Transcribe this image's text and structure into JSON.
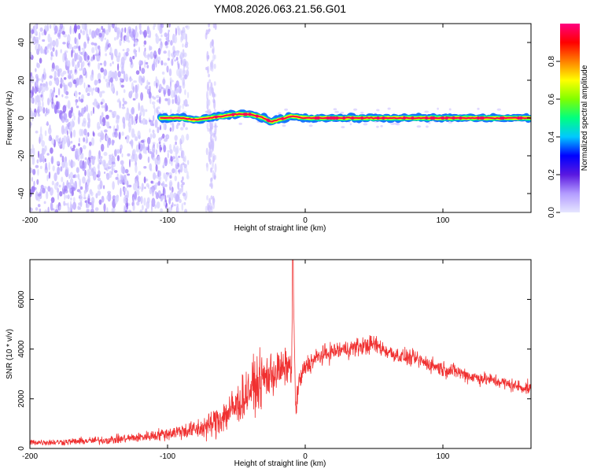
{
  "title": "YM08.2026.063.21.56.G01",
  "chart_data": [
    {
      "type": "heatmap",
      "title": "YM08.2026.063.21.56.G01",
      "xlabel": "Height of straight line (km)",
      "ylabel": "Frequency (Hz)",
      "xlim": [
        -200,
        164
      ],
      "ylim": [
        -50,
        50
      ],
      "x_ticks": [
        -200,
        -100,
        0,
        100
      ],
      "y_ticks": [
        -40,
        -20,
        0,
        20,
        40
      ],
      "grid": false,
      "colorbar": {
        "label": "Normalized spectral amplitude",
        "range": [
          0,
          1
        ],
        "ticks": [
          0,
          0.2,
          0.4,
          0.6,
          0.8
        ],
        "tick_labels": [
          "0.0",
          "0.2",
          "0.4",
          "0.6",
          "0.8"
        ],
        "colormap": [
          "#e6e6ff",
          "#b39cff",
          "#5a18e0",
          "#0000ff",
          "#00c8ff",
          "#00ff80",
          "#80ff00",
          "#ffff00",
          "#ff8000",
          "#ff0000",
          "#ff0080"
        ]
      },
      "noise_region": {
        "x": [
          -200,
          -85
        ],
        "freq": [
          -50,
          50
        ],
        "amplitude": [
          0.02,
          0.15
        ]
      },
      "gap_region": {
        "x": [
          -85,
          -72
        ],
        "amplitude": 0.02
      },
      "second_noise_band": {
        "x": [
          -72,
          -65
        ],
        "amplitude": [
          0.02,
          0.08
        ]
      },
      "carrier_track": {
        "x": [
          -105,
          -90,
          -80,
          -70,
          -60,
          -50,
          -40,
          -30,
          -25,
          -20,
          -10,
          0,
          20,
          50,
          100,
          164
        ],
        "freq": [
          0,
          0,
          -1,
          0,
          1,
          2,
          2,
          0,
          -2,
          -1,
          1,
          0,
          0,
          0,
          0,
          0
        ],
        "amplitude": [
          0.25,
          0.35,
          0.45,
          0.55,
          0.75,
          0.85,
          0.85,
          0.75,
          0.55,
          0.65,
          0.8,
          0.9,
          0.95,
          0.95,
          0.95,
          0.95
        ]
      }
    },
    {
      "type": "line",
      "xlabel": "Height of straight line (km)",
      "ylabel": "SNR (10 * v/v)",
      "xlim": [
        -200,
        164
      ],
      "ylim": [
        0,
        7600
      ],
      "x_ticks": [
        -200,
        -100,
        0,
        100
      ],
      "y_ticks": [
        0,
        2000,
        4000,
        6000
      ],
      "grid": false,
      "line_color": "#f03030",
      "series": [
        {
          "x": [
            -200,
            -180,
            -160,
            -140,
            -120,
            -100,
            -90,
            -80,
            -70,
            -60,
            -50,
            -40,
            -30,
            -25,
            -20,
            -15,
            -12,
            -10,
            -9,
            -7,
            -5,
            0,
            10,
            20,
            30,
            40,
            50,
            60,
            70,
            80,
            90,
            100,
            110,
            120,
            130,
            140,
            150,
            164
          ],
          "y": [
            250,
            250,
            300,
            350,
            450,
            600,
            700,
            750,
            900,
            1300,
            1700,
            2400,
            2800,
            3000,
            3100,
            3200,
            3400,
            3000,
            7600,
            1500,
            2500,
            3300,
            3700,
            3900,
            4000,
            4100,
            4200,
            3900,
            3700,
            3600,
            3400,
            3200,
            3100,
            2900,
            2800,
            2700,
            2550,
            2400
          ],
          "noise": [
            120,
            120,
            140,
            160,
            180,
            250,
            300,
            350,
            500,
            700,
            800,
            900,
            1000,
            900,
            800,
            700,
            600,
            500,
            0,
            500,
            500,
            400,
            350,
            350,
            350,
            350,
            350,
            300,
            300,
            300,
            300,
            300,
            280,
            270,
            260,
            250,
            250,
            250
          ]
        }
      ]
    }
  ]
}
